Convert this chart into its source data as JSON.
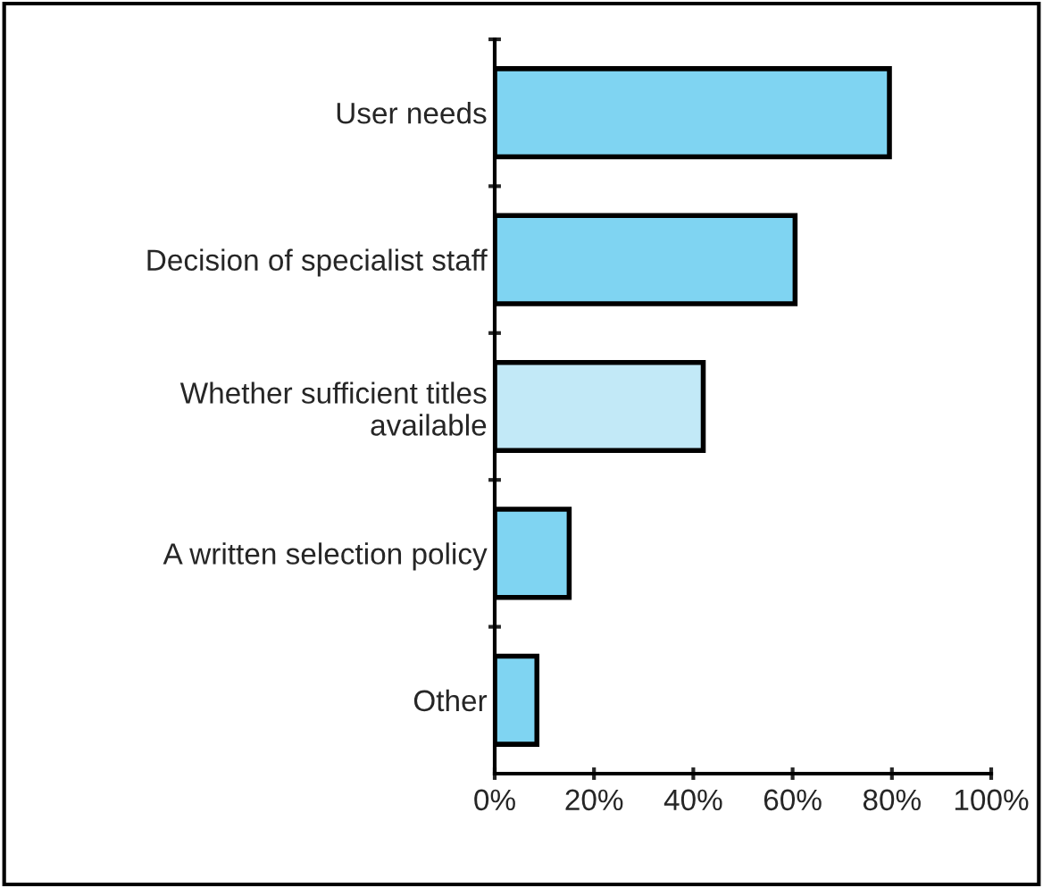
{
  "chart_data": {
    "type": "bar",
    "orientation": "horizontal",
    "categories": [
      "User needs",
      "Decision of specialist staff",
      "Whether sufficient titles\navailable",
      "A written selection policy",
      "Other"
    ],
    "values": [
      79.5,
      60.5,
      42,
      15,
      8.5
    ],
    "colors": [
      "#7fd4f2",
      "#7fd4f2",
      "#c2e9f7",
      "#7fd4f2",
      "#7fd4f2"
    ],
    "xlim": [
      0,
      100
    ],
    "xticks": [
      {
        "value": 0,
        "label": "0%"
      },
      {
        "value": 20,
        "label": "20%"
      },
      {
        "value": 40,
        "label": "40%"
      },
      {
        "value": 60,
        "label": "60%"
      },
      {
        "value": 80,
        "label": "80%"
      },
      {
        "value": 100,
        "label": "100%"
      }
    ],
    "grid": false,
    "legend": false
  }
}
